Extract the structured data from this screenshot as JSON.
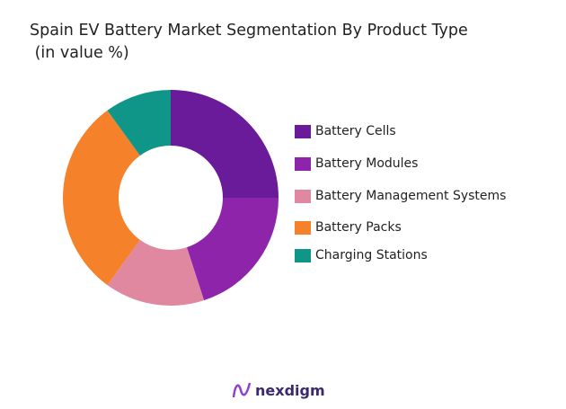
{
  "title_line1": "Spain EV Battery Market Segmentation By Product Type",
  "title_line2": " (in value %)",
  "chart_data": {
    "type": "pie",
    "donut": true,
    "title": "Spain EV Battery Market Segmentation By Product Type (in value %)",
    "categories": [
      "Battery Cells",
      "Battery Modules",
      "Battery Management Systems",
      "Battery Packs",
      "Charging Stations"
    ],
    "values": [
      25,
      20,
      15,
      30,
      10
    ],
    "colors": [
      "#6a1b9a",
      "#8e24aa",
      "#e088a0",
      "#f5812a",
      "#0f9688"
    ],
    "legend_position": "right"
  },
  "logo": {
    "text": "nexdigm"
  }
}
